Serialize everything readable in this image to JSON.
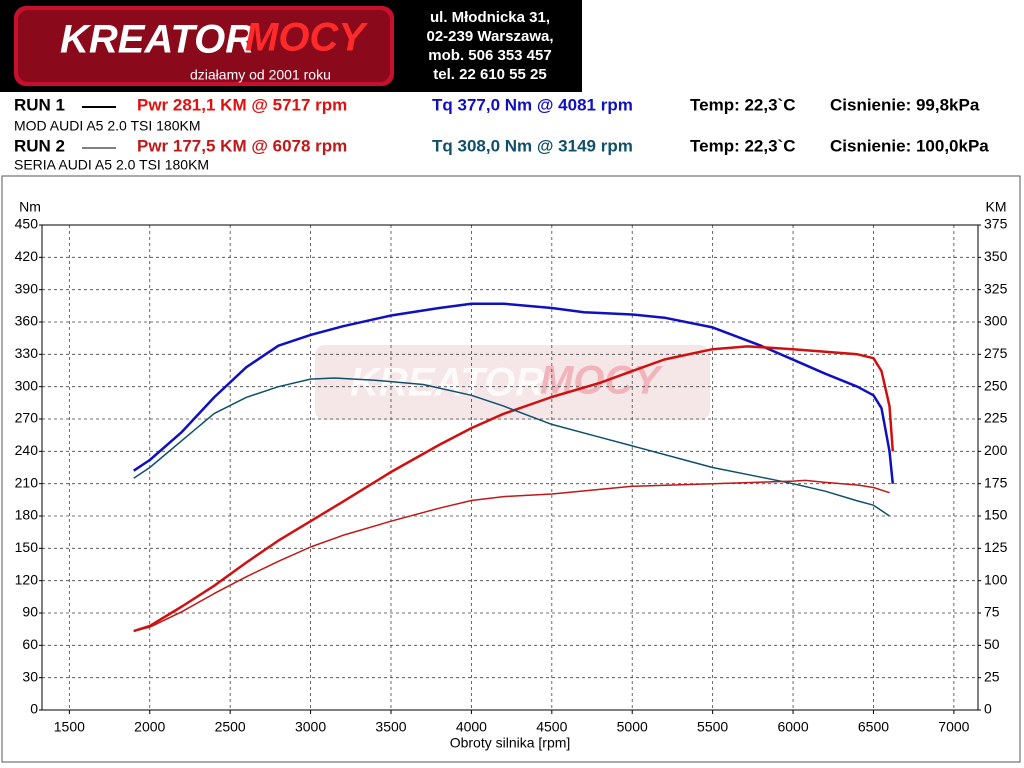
{
  "header": {
    "logo": [
      "KREATOR",
      "MOCY"
    ],
    "slogan": "działamy od 2001 roku",
    "address": [
      "ul. Młodnicka 31,",
      "02-239  Warszawa,",
      "mob.  506 353 457",
      "tel.  22 610 55 25"
    ]
  },
  "runs": [
    {
      "label": "RUN 1",
      "power": "Pwr  281,1 KM @ 5717 rpm",
      "torque": "Tq 377,0 Nm @ 4081 rpm",
      "temp": "Temp: 22,3`C",
      "pressure": "Cisnienie: 99,8kPa",
      "car": "MOD AUDI A5 2.0 TSI 180KM"
    },
    {
      "label": "RUN 2",
      "power": "Pwr  177,5 KM @ 6078 rpm",
      "torque": "Tq 308,0 Nm @ 3149 rpm",
      "temp": "Temp: 22,3`C",
      "pressure": "Cisnienie: 100,0kPa",
      "car": "SERIA AUDI A5 2.0 TSI 180KM"
    }
  ],
  "chart_data": {
    "type": "line",
    "ylabel": "Nm",
    "y2label": "KM",
    "xlabel": "Obroty silnika [rpm]",
    "xlim": [
      1330,
      7150
    ],
    "xticks": [
      1500,
      2000,
      2500,
      3000,
      3500,
      4000,
      4500,
      5000,
      5500,
      6000,
      6500,
      7000
    ],
    "ylim": [
      0,
      450
    ],
    "yticks": [
      0,
      30,
      60,
      90,
      120,
      150,
      180,
      210,
      240,
      270,
      300,
      330,
      360,
      390,
      420,
      450
    ],
    "y2lim": [
      0,
      375
    ],
    "y2ticks": [
      0,
      25,
      50,
      75,
      100,
      125,
      150,
      175,
      200,
      225,
      250,
      275,
      300,
      325,
      350,
      375
    ],
    "grid": true,
    "series": [
      {
        "name": "RUN 1",
        "color": "#1010c0",
        "width": 2.5,
        "x": [
          1900,
          2000,
          2200,
          2400,
          2600,
          2800,
          3000,
          3200,
          3500,
          3800,
          4000,
          4200,
          4500,
          4700,
          5000,
          5200,
          5500,
          5800,
          6000,
          6200,
          6400,
          6500,
          6550,
          6600,
          6620
        ],
        "values": [
          222,
          232,
          258,
          290,
          318,
          338,
          348,
          356,
          366,
          373,
          377,
          377,
          373,
          369,
          367,
          364,
          355,
          338,
          325,
          312,
          300,
          292,
          280,
          240,
          210
        ]
      },
      {
        "name": "RUN 1",
        "color": "#d01010",
        "width": 2.5,
        "axis": "y2",
        "x": [
          1900,
          2000,
          2200,
          2400,
          2600,
          2800,
          3000,
          3200,
          3500,
          3800,
          4000,
          4200,
          4500,
          4800,
          5000,
          5200,
          5500,
          5717,
          6000,
          6200,
          6400,
          6500,
          6550,
          6600,
          6620
        ],
        "values": [
          61,
          65,
          80,
          96,
          114,
          131,
          146,
          161,
          184,
          205,
          218,
          229,
          242,
          253,
          262,
          271,
          279,
          281.1,
          279,
          277,
          275,
          272,
          262,
          235,
          200
        ]
      },
      {
        "name": "RUN 2",
        "color": "#10506a",
        "width": 1.5,
        "x": [
          1900,
          2000,
          2200,
          2400,
          2600,
          2800,
          3000,
          3149,
          3400,
          3700,
          4000,
          4200,
          4500,
          4800,
          5000,
          5300,
          5500,
          5800,
          6000,
          6200,
          6400,
          6500,
          6600
        ],
        "values": [
          215,
          225,
          250,
          275,
          290,
          300,
          307,
          308,
          306,
          302,
          292,
          282,
          265,
          253,
          245,
          233,
          225,
          216,
          210,
          203,
          194,
          190,
          180
        ]
      },
      {
        "name": "RUN 2",
        "color": "#c01818",
        "width": 1.5,
        "axis": "y2",
        "x": [
          1900,
          2000,
          2200,
          2400,
          2600,
          2800,
          3000,
          3200,
          3500,
          3800,
          4000,
          4200,
          4500,
          5000,
          5500,
          6000,
          6078,
          6200,
          6400,
          6500,
          6600
        ],
        "values": [
          61,
          64,
          76,
          90,
          103,
          115,
          126,
          135,
          146,
          156,
          162,
          165,
          167,
          173,
          175,
          177,
          177.5,
          176,
          174,
          172,
          168
        ]
      }
    ]
  }
}
